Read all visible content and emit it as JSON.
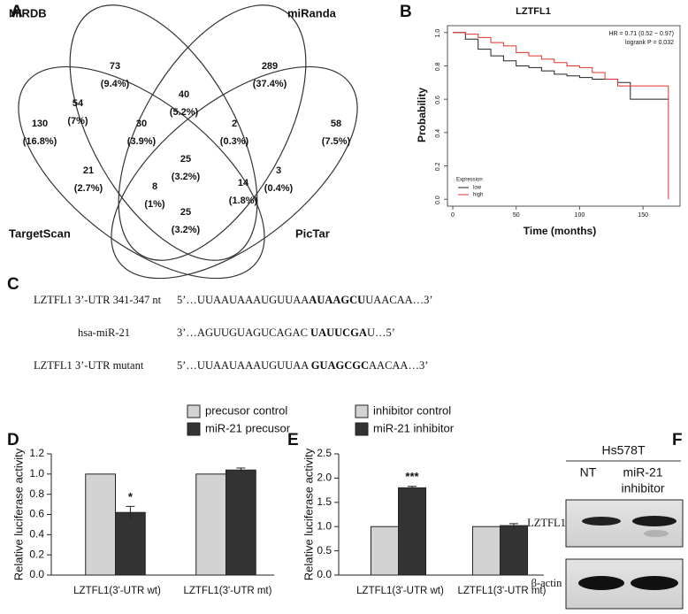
{
  "panel_labels": [
    "A",
    "B",
    "C",
    "D",
    "E",
    "F"
  ],
  "venn": {
    "sets": [
      "MIRDB",
      "miRanda",
      "TargetScan",
      "PicTar"
    ],
    "regions": [
      {
        "count": 73,
        "percent": "(9.4%)"
      },
      {
        "count": 289,
        "percent": "(37.4%)"
      },
      {
        "count": 54,
        "percent": "(7%)"
      },
      {
        "count": 40,
        "percent": "(5.2%)"
      },
      {
        "count": 130,
        "percent": "(16.8%)"
      },
      {
        "count": 30,
        "percent": "(3.9%)"
      },
      {
        "count": 2,
        "percent": "(0.3%)"
      },
      {
        "count": 58,
        "percent": "(7.5%)"
      },
      {
        "count": 25,
        "percent": "(3.2%)"
      },
      {
        "count": 21,
        "percent": "(2.7%)"
      },
      {
        "count": 3,
        "percent": "(0.4%)"
      },
      {
        "count": 8,
        "percent": "(1%)"
      },
      {
        "count": 14,
        "percent": "(1.8%)"
      },
      {
        "count": 25,
        "percent": "(3.2%)"
      }
    ]
  },
  "sequences": [
    {
      "label": "LZTFL1 3’-UTR 341-347 nt",
      "parts": [
        "5’…UUAAUAAAUGUUAA",
        "AUAAGCU",
        "UAACAA…3’"
      ]
    },
    {
      "label": "hsa-miR-21",
      "parts": [
        "3’…AGUUGUAGUCAGAC ",
        "UAUUCGA",
        "U…5’"
      ]
    },
    {
      "label": "LZTFL1 3’-UTR  mutant",
      "parts": [
        "5’…UUAAUAAAUGUUAA ",
        "GUAGCGC",
        "AACAA…3’"
      ]
    }
  ],
  "blot": {
    "cell_line": "Hs578T",
    "lanes": [
      [
        "NT"
      ],
      [
        "miR-21",
        "inhibitor"
      ]
    ],
    "rows": [
      "LZTFL1",
      "β-actin"
    ]
  },
  "chart_data": [
    {
      "type": "line",
      "title": "LZTFL1",
      "xlabel": "Time (months)",
      "ylabel": "Probability",
      "annotations": [
        "HR = 0.71 (0.52 − 0.97)",
        "logrank P = 0.032"
      ],
      "legend_title": "Expression",
      "x": [
        0,
        10,
        20,
        30,
        40,
        50,
        60,
        70,
        80,
        90,
        100,
        110,
        120,
        130,
        140,
        150,
        160,
        170
      ],
      "series": [
        {
          "name": "low",
          "color": "#222222",
          "values": [
            1,
            0.96,
            0.9,
            0.86,
            0.83,
            0.8,
            0.79,
            0.77,
            0.75,
            0.74,
            0.73,
            0.72,
            0.72,
            0.7,
            0.6,
            0.6,
            0.6,
            0.6
          ]
        },
        {
          "name": "high",
          "color": "#e0302a",
          "values": [
            1,
            0.99,
            0.97,
            0.94,
            0.92,
            0.88,
            0.86,
            0.84,
            0.82,
            0.8,
            0.79,
            0.76,
            0.72,
            0.68,
            0.68,
            0.68,
            0.68,
            0
          ]
        }
      ],
      "xlim": [
        0,
        175
      ],
      "xticks": [
        0,
        50,
        100,
        150
      ],
      "ylim": [
        -0.02,
        1.02
      ],
      "yticks": [
        {
          "value": 0,
          "label": "0.0"
        },
        {
          "value": 0.2,
          "label": "0.2"
        },
        {
          "value": 0.4,
          "label": "0.4"
        },
        {
          "value": 0.6,
          "label": "0.6"
        },
        {
          "value": 0.8,
          "label": "0.8"
        },
        {
          "value": 1,
          "label": "1.0"
        }
      ]
    },
    {
      "type": "bar",
      "ylabel": "Relative luciferase activity",
      "categories": [
        "LZTFL1(3'-UTR wt)",
        "LZTFL1(3'-UTR mt)"
      ],
      "series": [
        {
          "name": "precusor control",
          "color": "#d3d3d3",
          "values": [
            1,
            1
          ]
        },
        {
          "name": "miR-21 precusor",
          "color": "#333333",
          "values": [
            0.62,
            1.04
          ],
          "errors": [
            0.06,
            0.02
          ],
          "significance": [
            "*",
            null
          ]
        }
      ],
      "ylim": [
        0,
        1.2
      ],
      "yticks": [
        {
          "value": 0,
          "label": "0.0"
        },
        {
          "value": 0.2,
          "label": "0.2"
        },
        {
          "value": 0.4,
          "label": "0.4"
        },
        {
          "value": 0.6,
          "label": "0.6"
        },
        {
          "value": 0.8,
          "label": "0.8"
        },
        {
          "value": 1,
          "label": "1.0"
        },
        {
          "value": 1.2,
          "label": "1.2"
        }
      ]
    },
    {
      "type": "bar",
      "ylabel": "Relative luciferase activity",
      "categories": [
        "LZTFL1(3'-UTR wt)",
        "LZTFL1(3'-UTR mt)"
      ],
      "series": [
        {
          "name": "inhibitor control",
          "color": "#d3d3d3",
          "values": [
            1,
            1
          ]
        },
        {
          "name": "miR-21 inhibitor",
          "color": "#333333",
          "values": [
            1.8,
            1.02
          ],
          "errors": [
            0.03,
            0.04
          ],
          "significance": [
            "***",
            null
          ]
        }
      ],
      "ylim": [
        0,
        2.5
      ],
      "yticks": [
        {
          "value": 0,
          "label": "0.0"
        },
        {
          "value": 0.5,
          "label": "0.5"
        },
        {
          "value": 1,
          "label": "1.0"
        },
        {
          "value": 1.5,
          "label": "1.5"
        },
        {
          "value": 2,
          "label": "2.0"
        },
        {
          "value": 2.5,
          "label": "2.5"
        }
      ]
    }
  ]
}
